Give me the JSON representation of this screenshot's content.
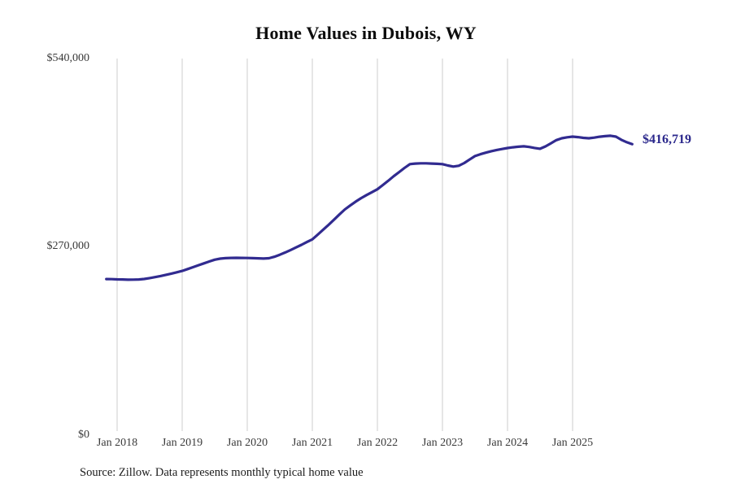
{
  "title": "Home Values in Dubois, WY",
  "source_note": "Source: Zillow. Data represents monthly typical home value",
  "end_value_label": "$416,719",
  "colors": {
    "line": "#312b90",
    "end_label": "#2b288c",
    "grid": "#cccccc",
    "tick_text": "#3a3a3a",
    "title_text": "#0d0d0d"
  },
  "y_axis": {
    "ticks": {
      "top": "$540,000",
      "middle": "$270,000",
      "bottom": "$0"
    }
  },
  "x_axis": {
    "ticks": [
      "Jan 2018",
      "Jan 2019",
      "Jan 2020",
      "Jan 2021",
      "Jan 2022",
      "Jan 2023",
      "Jan 2024",
      "Jan 2025"
    ]
  },
  "chart_data": {
    "type": "line",
    "title": "Home Values in Dubois, WY",
    "ylabel": "",
    "xlabel": "",
    "ylim": [
      0,
      540000
    ],
    "y_tick_values": [
      0,
      270000,
      540000
    ],
    "grid": "vertical-only",
    "legend": "none",
    "line_end_annotation": "$416,719",
    "x": [
      "2017-11",
      "2017-12",
      "2018-01",
      "2018-02",
      "2018-03",
      "2018-04",
      "2018-05",
      "2018-06",
      "2018-07",
      "2018-08",
      "2018-09",
      "2018-10",
      "2018-11",
      "2018-12",
      "2019-01",
      "2019-02",
      "2019-03",
      "2019-04",
      "2019-05",
      "2019-06",
      "2019-07",
      "2019-08",
      "2019-09",
      "2019-10",
      "2019-11",
      "2019-12",
      "2020-01",
      "2020-02",
      "2020-03",
      "2020-04",
      "2020-05",
      "2020-06",
      "2020-07",
      "2020-08",
      "2020-09",
      "2020-10",
      "2020-11",
      "2020-12",
      "2021-01",
      "2021-02",
      "2021-03",
      "2021-04",
      "2021-05",
      "2021-06",
      "2021-07",
      "2021-08",
      "2021-09",
      "2021-10",
      "2021-11",
      "2021-12",
      "2022-01",
      "2022-02",
      "2022-03",
      "2022-04",
      "2022-05",
      "2022-06",
      "2022-07",
      "2022-08",
      "2022-09",
      "2022-10",
      "2022-11",
      "2022-12",
      "2023-01",
      "2023-02",
      "2023-03",
      "2023-04",
      "2023-05",
      "2023-06",
      "2023-07",
      "2023-08",
      "2023-09",
      "2023-10",
      "2023-11",
      "2023-12",
      "2024-01",
      "2024-02",
      "2024-03",
      "2024-04",
      "2024-05",
      "2024-06",
      "2024-07",
      "2024-08",
      "2024-09",
      "2024-10",
      "2024-11",
      "2024-12",
      "2025-01",
      "2025-02",
      "2025-03",
      "2025-04",
      "2025-05",
      "2025-06",
      "2025-07",
      "2025-08",
      "2025-09",
      "2025-10",
      "2025-11",
      "2025-12"
    ],
    "values": [
      222500,
      222300,
      222000,
      221800,
      221500,
      221600,
      221900,
      222600,
      223800,
      225200,
      226800,
      228500,
      230300,
      232200,
      234200,
      236800,
      239500,
      242300,
      245000,
      247800,
      250300,
      251800,
      252600,
      252900,
      253000,
      252900,
      252800,
      252600,
      252300,
      252000,
      252400,
      254500,
      257500,
      260800,
      264300,
      268000,
      271800,
      275700,
      279600,
      286500,
      293500,
      300600,
      308000,
      315400,
      322700,
      328500,
      333900,
      339000,
      343400,
      347600,
      351800,
      357800,
      364000,
      370500,
      376500,
      382400,
      388000,
      388800,
      389100,
      389100,
      388800,
      388400,
      388000,
      386000,
      384500,
      385600,
      389500,
      394500,
      399600,
      402200,
      404500,
      406600,
      408300,
      409800,
      411200,
      412200,
      413000,
      413600,
      412700,
      411300,
      410100,
      413500,
      418000,
      422500,
      425200,
      426600,
      427600,
      426800,
      425800,
      425200,
      426200,
      427400,
      428300,
      428800,
      427500,
      423000,
      419500,
      416719
    ]
  }
}
